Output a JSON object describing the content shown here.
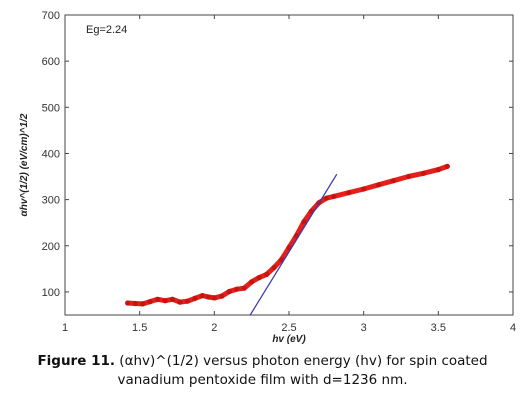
{
  "chart_data": {
    "type": "line",
    "title": "",
    "xlabel": "hv (eV)",
    "ylabel": "αhv^(1/2) (eV/cm)^1/2",
    "xlim": [
      1,
      4
    ],
    "ylim": [
      50,
      700
    ],
    "xticks": [
      1,
      1.5,
      2,
      2.5,
      3,
      3.5,
      4
    ],
    "yticks": [
      100,
      200,
      300,
      400,
      500,
      600,
      700
    ],
    "xtick_labels": [
      "1",
      "1.5",
      "2",
      "2.5",
      "3",
      "3.5",
      "4"
    ],
    "ytick_labels": [
      "100",
      "200",
      "300",
      "400",
      "500",
      "600",
      "700"
    ],
    "grid": false,
    "annotation": "Eg=2.24",
    "series": [
      {
        "color": "#e3201b",
        "style": "thick-markers",
        "x": [
          1.42,
          1.47,
          1.52,
          1.57,
          1.62,
          1.67,
          1.72,
          1.77,
          1.82,
          1.87,
          1.92,
          1.96,
          2.0,
          2.05,
          2.1,
          2.15,
          2.2,
          2.25,
          2.3,
          2.35,
          2.4,
          2.45,
          2.5,
          2.55,
          2.6,
          2.65,
          2.7,
          2.75,
          2.8,
          2.9,
          3.0,
          3.1,
          3.2,
          3.3,
          3.4,
          3.5,
          3.56
        ],
        "y": [
          76,
          75,
          74,
          79,
          84,
          81,
          84,
          78,
          80,
          86,
          92,
          89,
          87,
          91,
          101,
          106,
          108,
          122,
          131,
          138,
          153,
          170,
          196,
          222,
          252,
          275,
          293,
          303,
          307,
          315,
          323,
          332,
          341,
          350,
          357,
          365,
          372
        ]
      },
      {
        "color": "#3c3cb4",
        "style": "fit-line",
        "x": [
          2.24,
          2.82
        ],
        "y": [
          50,
          355
        ]
      }
    ]
  },
  "caption": {
    "label": "Figure 11.",
    "text": "(αhv)^(1/2) versus photon energy (hv) for spin coated vanadium pentoxide film with d=1236 nm."
  }
}
